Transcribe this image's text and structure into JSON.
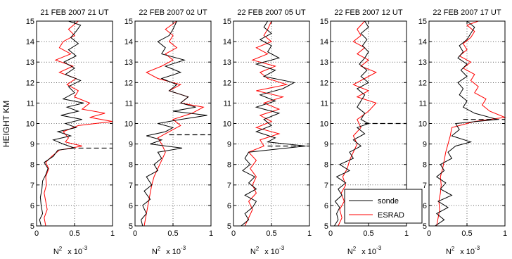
{
  "figure": {
    "ylabel": "HEIGHT KM",
    "legend": [
      {
        "name": "sonde",
        "color": "#000000"
      },
      {
        "name": "ESRAD",
        "color": "#ff0000"
      }
    ]
  },
  "chart_data": [
    {
      "type": "line",
      "title": "21 FEB 2007 21 UT",
      "xlabel": "N",
      "xlabel_sup": "2",
      "xscale": "x 10",
      "xscale_sup": "-3",
      "xlim": [
        0,
        1
      ],
      "ylim": [
        5,
        15
      ],
      "xticks": [
        "0",
        "0.5",
        "1"
      ],
      "yticks": [
        "5",
        "6",
        "7",
        "8",
        "9",
        "10",
        "11",
        "12",
        "13",
        "14",
        "15"
      ],
      "tropopause_km": 8.8,
      "grid": true,
      "series": [
        {
          "name": "sonde",
          "color": "#000000",
          "y": [
            5.0,
            5.3,
            5.6,
            6.0,
            6.4,
            6.8,
            7.2,
            7.5,
            7.8,
            8.1,
            8.4,
            8.7,
            8.8,
            9.0,
            9.2,
            9.4,
            9.6,
            9.8,
            10.0,
            10.2,
            10.4,
            10.6,
            10.8,
            11.0,
            11.2,
            11.5,
            11.8,
            12.1,
            12.4,
            12.7,
            13.0,
            13.3,
            13.6,
            13.9,
            14.2,
            14.5,
            14.8,
            15.0
          ],
          "x": [
            0.06,
            0.04,
            0.08,
            0.06,
            0.05,
            0.07,
            0.08,
            0.12,
            0.15,
            0.1,
            0.22,
            0.28,
            0.5,
            0.35,
            0.22,
            0.45,
            0.28,
            0.52,
            0.38,
            0.6,
            0.32,
            0.55,
            0.4,
            0.62,
            0.35,
            0.5,
            0.42,
            0.58,
            0.38,
            0.5,
            0.36,
            0.52,
            0.42,
            0.55,
            0.45,
            0.52,
            0.58,
            0.42
          ]
        },
        {
          "name": "ESRAD",
          "color": "#ff0000",
          "y": [
            5.0,
            5.4,
            5.8,
            6.2,
            6.6,
            7.0,
            7.4,
            7.8,
            8.1,
            8.4,
            8.7,
            8.9,
            9.1,
            9.3,
            9.6,
            9.9,
            10.1,
            10.3,
            10.5,
            10.7,
            11.0,
            11.3,
            11.6,
            11.9,
            12.2,
            12.5,
            12.8,
            13.1,
            13.4,
            13.7,
            14.0,
            14.3,
            14.6,
            15.0
          ],
          "x": [
            0.12,
            0.1,
            0.14,
            0.12,
            0.1,
            0.13,
            0.12,
            0.16,
            0.12,
            0.2,
            0.3,
            0.6,
            0.38,
            0.42,
            0.35,
            0.55,
            1.0,
            0.7,
            0.9,
            0.6,
            0.7,
            0.5,
            0.55,
            0.4,
            0.52,
            0.3,
            0.48,
            0.25,
            0.45,
            0.3,
            0.35,
            0.5,
            0.42,
            0.55
          ]
        }
      ]
    },
    {
      "type": "line",
      "title": "22 FEB 2007 02 UT",
      "xlabel": "N",
      "xlabel_sup": "2",
      "xscale": "x 10",
      "xscale_sup": "-3",
      "xlim": [
        0,
        1
      ],
      "ylim": [
        5,
        15
      ],
      "xticks": [
        "0",
        "0.5",
        "1"
      ],
      "yticks": [
        "5",
        "6",
        "7",
        "8",
        "9",
        "10",
        "11",
        "12",
        "13",
        "14",
        "15"
      ],
      "tropopause_km": 9.45,
      "grid": true,
      "series": [
        {
          "name": "sonde",
          "color": "#000000",
          "y": [
            5.0,
            5.3,
            5.6,
            6.0,
            6.3,
            6.7,
            7.0,
            7.4,
            7.7,
            8.0,
            8.3,
            8.6,
            8.8,
            9.0,
            9.2,
            9.4,
            9.6,
            9.8,
            10.0,
            10.2,
            10.4,
            10.6,
            10.8,
            11.0,
            11.3,
            11.6,
            11.9,
            12.2,
            12.5,
            12.8,
            13.1,
            13.4,
            13.7,
            14.0,
            14.3,
            14.6,
            15.0
          ],
          "x": [
            0.1,
            0.08,
            0.15,
            0.1,
            0.2,
            0.12,
            0.22,
            0.15,
            0.3,
            0.25,
            0.35,
            0.3,
            0.62,
            0.2,
            0.35,
            0.15,
            0.4,
            0.5,
            0.3,
            0.6,
            0.95,
            0.5,
            0.8,
            0.6,
            0.7,
            0.45,
            0.55,
            0.35,
            0.6,
            0.4,
            0.65,
            0.35,
            0.4,
            0.3,
            0.45,
            0.5,
            0.55
          ]
        },
        {
          "name": "ESRAD",
          "color": "#ff0000",
          "y": [
            5.0,
            5.4,
            5.8,
            6.2,
            6.6,
            7.0,
            7.4,
            7.8,
            8.2,
            8.6,
            9.0,
            9.3,
            9.6,
            9.9,
            10.2,
            10.5,
            10.8,
            11.0,
            11.3,
            11.6,
            11.9,
            12.2,
            12.5,
            12.8,
            13.1,
            13.4,
            13.7,
            14.0,
            14.3,
            14.6,
            15.0
          ],
          "x": [
            0.12,
            0.14,
            0.16,
            0.18,
            0.2,
            0.22,
            0.25,
            0.3,
            0.35,
            0.4,
            0.35,
            0.3,
            0.45,
            0.6,
            0.5,
            0.75,
            0.9,
            0.6,
            0.7,
            0.45,
            0.6,
            0.3,
            0.15,
            0.35,
            0.5,
            0.4,
            0.55,
            0.45,
            0.5,
            0.4,
            0.55
          ]
        }
      ]
    },
    {
      "type": "line",
      "title": "22 FEB 2007 05 UT",
      "xlabel": "N",
      "xlabel_sup": "2",
      "xscale": "x 10",
      "xscale_sup": "-3",
      "xlim": [
        0,
        1
      ],
      "ylim": [
        5,
        15
      ],
      "xticks": [
        "0",
        "0.5",
        "1"
      ],
      "yticks": [
        "5",
        "6",
        "7",
        "8",
        "9",
        "10",
        "11",
        "12",
        "13",
        "14",
        "15"
      ],
      "tropopause_km": 8.9,
      "grid": true,
      "series": [
        {
          "name": "sonde",
          "color": "#000000",
          "y": [
            5.0,
            5.3,
            5.6,
            5.9,
            6.2,
            6.5,
            6.8,
            7.1,
            7.4,
            7.7,
            8.0,
            8.3,
            8.6,
            8.9,
            9.1,
            9.3,
            9.6,
            9.9,
            10.2,
            10.5,
            10.8,
            11.1,
            11.4,
            11.7,
            12.0,
            12.3,
            12.6,
            12.9,
            13.2,
            13.5,
            13.8,
            14.1,
            14.4,
            14.7,
            15.0
          ],
          "x": [
            0.1,
            0.2,
            0.15,
            0.25,
            0.3,
            0.15,
            0.3,
            0.2,
            0.28,
            0.12,
            0.22,
            0.15,
            0.2,
            0.95,
            0.45,
            0.55,
            0.3,
            0.5,
            0.4,
            0.6,
            0.3,
            0.55,
            0.35,
            0.65,
            0.8,
            0.4,
            0.55,
            0.3,
            0.6,
            0.45,
            0.5,
            0.35,
            0.5,
            0.4,
            0.45
          ]
        },
        {
          "name": "ESRAD",
          "color": "#ff0000",
          "y": [
            5.0,
            5.4,
            5.8,
            6.2,
            6.6,
            7.0,
            7.4,
            7.8,
            8.2,
            8.6,
            8.9,
            9.2,
            9.5,
            9.8,
            10.1,
            10.4,
            10.7,
            11.0,
            11.3,
            11.6,
            11.9,
            12.2,
            12.5,
            12.8,
            13.1,
            13.4,
            13.7,
            14.0,
            14.3,
            14.6,
            15.0
          ],
          "x": [
            0.15,
            0.2,
            0.25,
            0.2,
            0.3,
            0.25,
            0.3,
            0.22,
            0.3,
            0.2,
            0.4,
            0.35,
            0.6,
            0.3,
            0.5,
            0.35,
            0.6,
            0.4,
            0.65,
            0.3,
            0.7,
            0.45,
            0.35,
            0.55,
            0.25,
            0.45,
            0.3,
            0.5,
            0.4,
            0.45,
            0.5
          ]
        }
      ]
    },
    {
      "type": "line",
      "title": "22 FEB 2007 12 UT",
      "xlabel": "N",
      "xlabel_sup": "2",
      "xscale": "x 10",
      "xscale_sup": "-3",
      "xlim": [
        0,
        1
      ],
      "ylim": [
        5,
        15
      ],
      "xticks": [
        "0",
        "0.5",
        "1"
      ],
      "yticks": [
        "5",
        "6",
        "7",
        "8",
        "9",
        "10",
        "11",
        "12",
        "13",
        "14",
        "15"
      ],
      "tropopause_km": 10.0,
      "grid": true,
      "series": [
        {
          "name": "sonde",
          "color": "#000000",
          "y": [
            5.0,
            5.3,
            5.6,
            5.9,
            6.2,
            6.5,
            6.8,
            7.1,
            7.4,
            7.7,
            8.0,
            8.3,
            8.6,
            8.9,
            9.2,
            9.5,
            9.8,
            10.0,
            10.2,
            10.5,
            10.8,
            11.1,
            11.4,
            11.7,
            12.0,
            12.3,
            12.6,
            12.9,
            13.2,
            13.5,
            13.8,
            14.1,
            14.4,
            14.7,
            15.0
          ],
          "x": [
            0.05,
            0.1,
            0.08,
            0.12,
            0.06,
            0.15,
            0.1,
            0.2,
            0.08,
            0.25,
            0.12,
            0.3,
            0.25,
            0.4,
            0.3,
            0.45,
            0.35,
            0.5,
            0.4,
            0.45,
            0.35,
            0.4,
            0.45,
            0.35,
            0.5,
            0.4,
            0.48,
            0.38,
            0.45,
            0.5,
            0.42,
            0.48,
            0.4,
            0.5,
            0.45
          ]
        },
        {
          "name": "ESRAD",
          "color": "#ff0000",
          "y": [
            5.0,
            5.4,
            5.8,
            6.2,
            6.6,
            7.0,
            7.4,
            7.8,
            8.2,
            8.6,
            9.0,
            9.4,
            9.8,
            10.2,
            10.6,
            11.0,
            11.3,
            11.6,
            11.9,
            12.2,
            12.5,
            12.8,
            13.1,
            13.4,
            13.7,
            14.0,
            14.3,
            14.6,
            15.0
          ],
          "x": [
            0.1,
            0.15,
            0.12,
            0.18,
            0.14,
            0.2,
            0.16,
            0.22,
            0.25,
            0.3,
            0.35,
            0.3,
            0.4,
            0.35,
            0.5,
            0.6,
            0.35,
            0.5,
            0.3,
            0.45,
            0.6,
            0.4,
            0.5,
            0.35,
            0.45,
            0.3,
            0.4,
            0.35,
            0.45
          ]
        }
      ]
    },
    {
      "type": "line",
      "title": "22 FEB 2007 17 UT",
      "xlabel": "N",
      "xlabel_sup": "2",
      "xscale": "x 10",
      "xscale_sup": "-3",
      "xlim": [
        0,
        1
      ],
      "ylim": [
        5,
        15
      ],
      "xticks": [
        "0",
        "0.5",
        "1"
      ],
      "yticks": [
        "5",
        "6",
        "7",
        "8",
        "9",
        "10",
        "11",
        "12",
        "13",
        "14",
        "15"
      ],
      "tropopause_km": 10.2,
      "grid": true,
      "series": [
        {
          "name": "sonde",
          "color": "#000000",
          "y": [
            5.0,
            5.3,
            5.6,
            5.9,
            6.2,
            6.5,
            6.8,
            7.1,
            7.4,
            7.7,
            8.0,
            8.3,
            8.6,
            8.9,
            9.1,
            9.4,
            9.7,
            10.0,
            10.2,
            10.5,
            10.8,
            11.1,
            11.4,
            11.7,
            12.0,
            12.3,
            12.6,
            12.9,
            13.2,
            13.5,
            13.8,
            14.1,
            14.4,
            14.7,
            15.0
          ],
          "x": [
            0.08,
            0.2,
            0.1,
            0.25,
            0.12,
            0.3,
            0.15,
            0.22,
            0.1,
            0.2,
            0.15,
            0.3,
            0.25,
            0.35,
            0.55,
            0.3,
            0.4,
            0.35,
            0.9,
            0.6,
            0.45,
            0.5,
            0.4,
            0.45,
            0.38,
            0.5,
            0.42,
            0.5,
            0.38,
            0.45,
            0.4,
            0.5,
            0.55,
            0.6,
            0.5
          ]
        },
        {
          "name": "ESRAD",
          "color": "#ff0000",
          "y": [
            5.0,
            5.4,
            5.8,
            6.2,
            6.6,
            7.0,
            7.4,
            7.8,
            8.2,
            8.6,
            9.0,
            9.4,
            9.8,
            10.1,
            10.3,
            10.6,
            10.9,
            11.2,
            11.5,
            11.8,
            12.1,
            12.4,
            12.7,
            13.0,
            13.3,
            13.6,
            13.9,
            14.2,
            14.5,
            14.8,
            15.0
          ],
          "x": [
            0.1,
            0.12,
            0.14,
            0.13,
            0.15,
            0.16,
            0.15,
            0.18,
            0.2,
            0.22,
            0.25,
            0.28,
            0.3,
            0.6,
            1.0,
            0.8,
            0.7,
            0.75,
            0.6,
            0.65,
            0.55,
            0.6,
            0.45,
            0.55,
            0.4,
            0.5,
            0.45,
            0.55,
            0.6,
            0.5,
            0.65
          ]
        }
      ]
    }
  ]
}
